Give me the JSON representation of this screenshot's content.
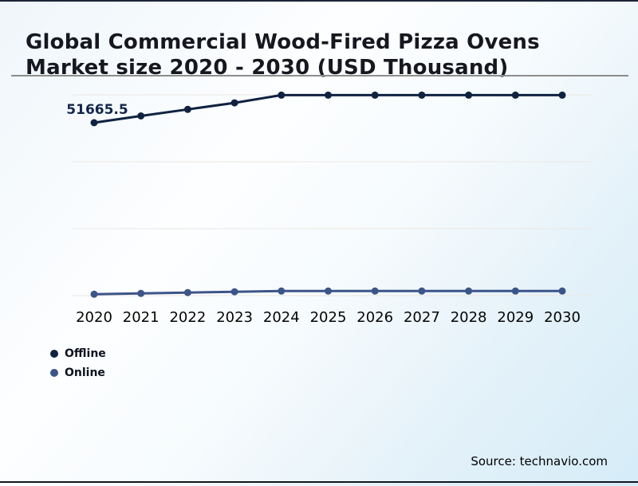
{
  "header": {
    "title": "Global Commercial Wood-Fired Pizza Ovens Market size 2020 - 2030 (USD Thousand)",
    "title_line1": "Global Commercial Wood-Fired Pizza Ovens",
    "title_line2": "Market size 2020 - 2030 (USD Thousand)"
  },
  "chart_data": {
    "type": "line",
    "title": "Global Commercial Wood-Fired Pizza Ovens Market size 2020 - 2030 (USD Thousand)",
    "xlabel": "",
    "ylabel": "USD Thousand",
    "categories": [
      "2020",
      "2021",
      "2022",
      "2023",
      "2024",
      "2025",
      "2026",
      "2027",
      "2028",
      "2029",
      "2030"
    ],
    "series": [
      {
        "name": "Offline",
        "color": "#0f2240",
        "values": [
          51665.5,
          53700,
          55650,
          57600,
          59900,
          59900,
          59900,
          59900,
          59900,
          59900,
          59900
        ]
      },
      {
        "name": "Online",
        "color": "#3c5588",
        "values": [
          400,
          650,
          900,
          1150,
          1350,
          1350,
          1350,
          1350,
          1350,
          1350,
          1350
        ]
      }
    ],
    "ylim": [
      0,
      60000
    ],
    "gridlines": [
      0,
      20000,
      40000,
      60000
    ],
    "grid": true,
    "legend_position": "bottom-left",
    "data_labels": [
      {
        "series": "Offline",
        "category": "2020",
        "text": "51665.5"
      }
    ],
    "colors": {
      "grid": "#ece7e1",
      "axis_label": "#050505",
      "data_label": "#132649"
    }
  },
  "footer": {
    "source": "Source: technavio.com"
  }
}
